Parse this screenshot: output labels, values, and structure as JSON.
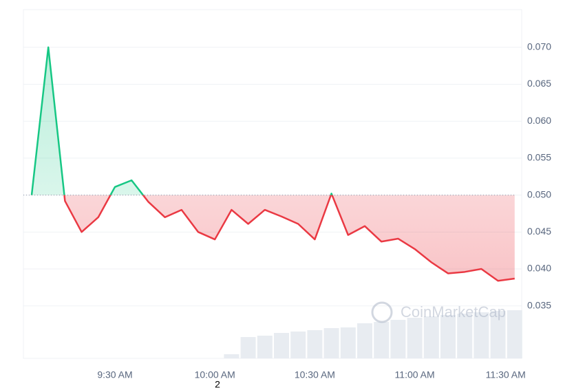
{
  "chart_data": {
    "type": "line",
    "categories": [
      null,
      null,
      null,
      null,
      null,
      "9:30 AM",
      null,
      null,
      null,
      null,
      null,
      "10:00 AM",
      null,
      null,
      null,
      null,
      null,
      "10:30 AM",
      null,
      null,
      null,
      null,
      null,
      "11:00 AM",
      null,
      null,
      null,
      null,
      null,
      "11:30 AM"
    ],
    "price": {
      "values": [
        0.05,
        0.07,
        0.0492,
        0.045,
        0.047,
        0.0511,
        0.052,
        0.0491,
        0.047,
        0.048,
        0.045,
        0.044,
        0.048,
        0.0461,
        0.048,
        0.0471,
        0.0461,
        0.044,
        0.0502,
        0.0446,
        0.0458,
        0.0437,
        0.0441,
        0.0427,
        0.0409,
        0.0394,
        0.0396,
        0.04,
        0.0384,
        0.0387
      ],
      "color_up": "#16c784",
      "color_down": "#ea3943"
    },
    "baseline": 0.05,
    "volume": {
      "values": [
        null,
        null,
        null,
        null,
        null,
        null,
        null,
        null,
        null,
        null,
        null,
        null,
        6,
        31,
        33,
        37,
        39,
        41,
        44,
        45,
        51,
        53,
        56,
        59,
        61,
        63,
        65,
        67,
        69,
        70
      ],
      "color": "#e8ecf1",
      "ylim": [
        0,
        100
      ]
    },
    "ylim": [
      0.0279,
      0.0751
    ],
    "yticks": [
      {
        "value": 0.035,
        "label": "0.035"
      },
      {
        "value": 0.04,
        "label": "0.040"
      },
      {
        "value": 0.045,
        "label": "0.045"
      },
      {
        "value": 0.05,
        "label": "0.050"
      },
      {
        "value": 0.055,
        "label": "0.055"
      },
      {
        "value": 0.06,
        "label": "0.060"
      },
      {
        "value": 0.065,
        "label": "0.065"
      },
      {
        "value": 0.07,
        "label": "0.070"
      }
    ],
    "grid": true,
    "watermark": "CoinMarketCap",
    "annotation": "2"
  }
}
